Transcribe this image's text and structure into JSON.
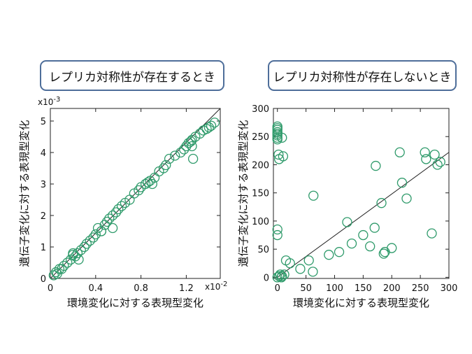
{
  "chart_data": [
    {
      "type": "scatter",
      "title": "レプリカ対称性が存在するとき",
      "xlabel": "環境変化に対する表現型変化",
      "ylabel": "遺伝子変化に対する表現型変化",
      "x_multiplier": "x10-2",
      "y_multiplier": "x10-3",
      "xlim": [
        0,
        1.5
      ],
      "ylim": [
        0,
        5.4
      ],
      "xticks": [
        "0",
        "0.4",
        "0.8",
        "1.2"
      ],
      "xtick_values": [
        0,
        0.4,
        0.8,
        1.2
      ],
      "yticks": [
        "0",
        "1",
        "2",
        "3",
        "4",
        "5"
      ],
      "ytick_values": [
        0,
        1,
        2,
        3,
        4,
        5
      ],
      "marker_color": "#2e9a6a",
      "fit_line": [
        [
          0,
          0
        ],
        [
          1.5,
          5.5
        ]
      ],
      "x": [
        0.03,
        0.05,
        0.06,
        0.08,
        0.1,
        0.12,
        0.15,
        0.18,
        0.2,
        0.22,
        0.24,
        0.25,
        0.27,
        0.3,
        0.32,
        0.35,
        0.38,
        0.4,
        0.42,
        0.45,
        0.48,
        0.5,
        0.52,
        0.55,
        0.58,
        0.6,
        0.63,
        0.66,
        0.7,
        0.74,
        0.78,
        0.8,
        0.84,
        0.86,
        0.88,
        0.92,
        0.96,
        1.0,
        1.02,
        1.05,
        1.1,
        1.15,
        1.18,
        1.2,
        1.22,
        1.24,
        1.25,
        1.26,
        1.28,
        1.32,
        1.35,
        1.38,
        1.4,
        1.42,
        1.45,
        0.55,
        1.25,
        0.9,
        0.45,
        0.2
      ],
      "y": [
        0.1,
        0.2,
        0.15,
        0.3,
        0.3,
        0.4,
        0.5,
        0.6,
        0.75,
        0.7,
        0.8,
        0.6,
        0.9,
        1.0,
        1.1,
        1.2,
        1.3,
        1.4,
        1.6,
        1.5,
        1.7,
        1.8,
        1.9,
        2.0,
        2.1,
        2.2,
        2.3,
        2.4,
        2.5,
        2.7,
        2.8,
        2.9,
        3.0,
        3.05,
        3.1,
        3.2,
        3.4,
        3.5,
        3.6,
        3.8,
        3.9,
        4.0,
        4.1,
        4.2,
        4.3,
        4.35,
        4.4,
        3.8,
        4.5,
        4.6,
        4.7,
        4.75,
        4.8,
        4.85,
        4.95,
        1.6,
        4.2,
        3.0,
        1.5,
        0.8
      ]
    },
    {
      "type": "scatter",
      "title": "レプリカ対称性が存在しないとき",
      "xlabel": "環境変化に対する表現型変化",
      "ylabel": "遺伝子変化に対する表現型変化",
      "xlim": [
        -7,
        300
      ],
      "ylim": [
        -2,
        300
      ],
      "xticks": [
        "0",
        "50",
        "100",
        "150",
        "200",
        "250",
        "300"
      ],
      "xtick_values": [
        0,
        50,
        100,
        150,
        200,
        250,
        300
      ],
      "yticks": [
        "0",
        "50",
        "100",
        "150",
        "200",
        "250",
        "300"
      ],
      "ytick_values": [
        0,
        50,
        100,
        150,
        200,
        250,
        300
      ],
      "marker_color": "#2e9a6a",
      "fit_line": [
        [
          0,
          0
        ],
        [
          300,
          222
        ]
      ],
      "x": [
        0,
        0,
        0,
        0,
        0,
        0,
        0,
        0,
        2,
        3,
        5,
        7,
        8,
        0,
        0,
        0,
        3,
        8,
        10,
        12,
        15,
        22,
        40,
        55,
        62,
        63,
        90,
        108,
        122,
        130,
        150,
        162,
        170,
        172,
        182,
        186,
        188,
        200,
        214,
        218,
        226,
        258,
        260,
        270,
        275,
        280,
        285
      ],
      "y": [
        268,
        265,
        262,
        258,
        255,
        252,
        248,
        245,
        218,
        210,
        5,
        0,
        2,
        85,
        75,
        0,
        2,
        248,
        215,
        5,
        30,
        25,
        15,
        30,
        10,
        145,
        40,
        45,
        98,
        60,
        75,
        55,
        88,
        198,
        132,
        42,
        45,
        52,
        222,
        168,
        140,
        222,
        210,
        78,
        218,
        200,
        205
      ]
    }
  ]
}
